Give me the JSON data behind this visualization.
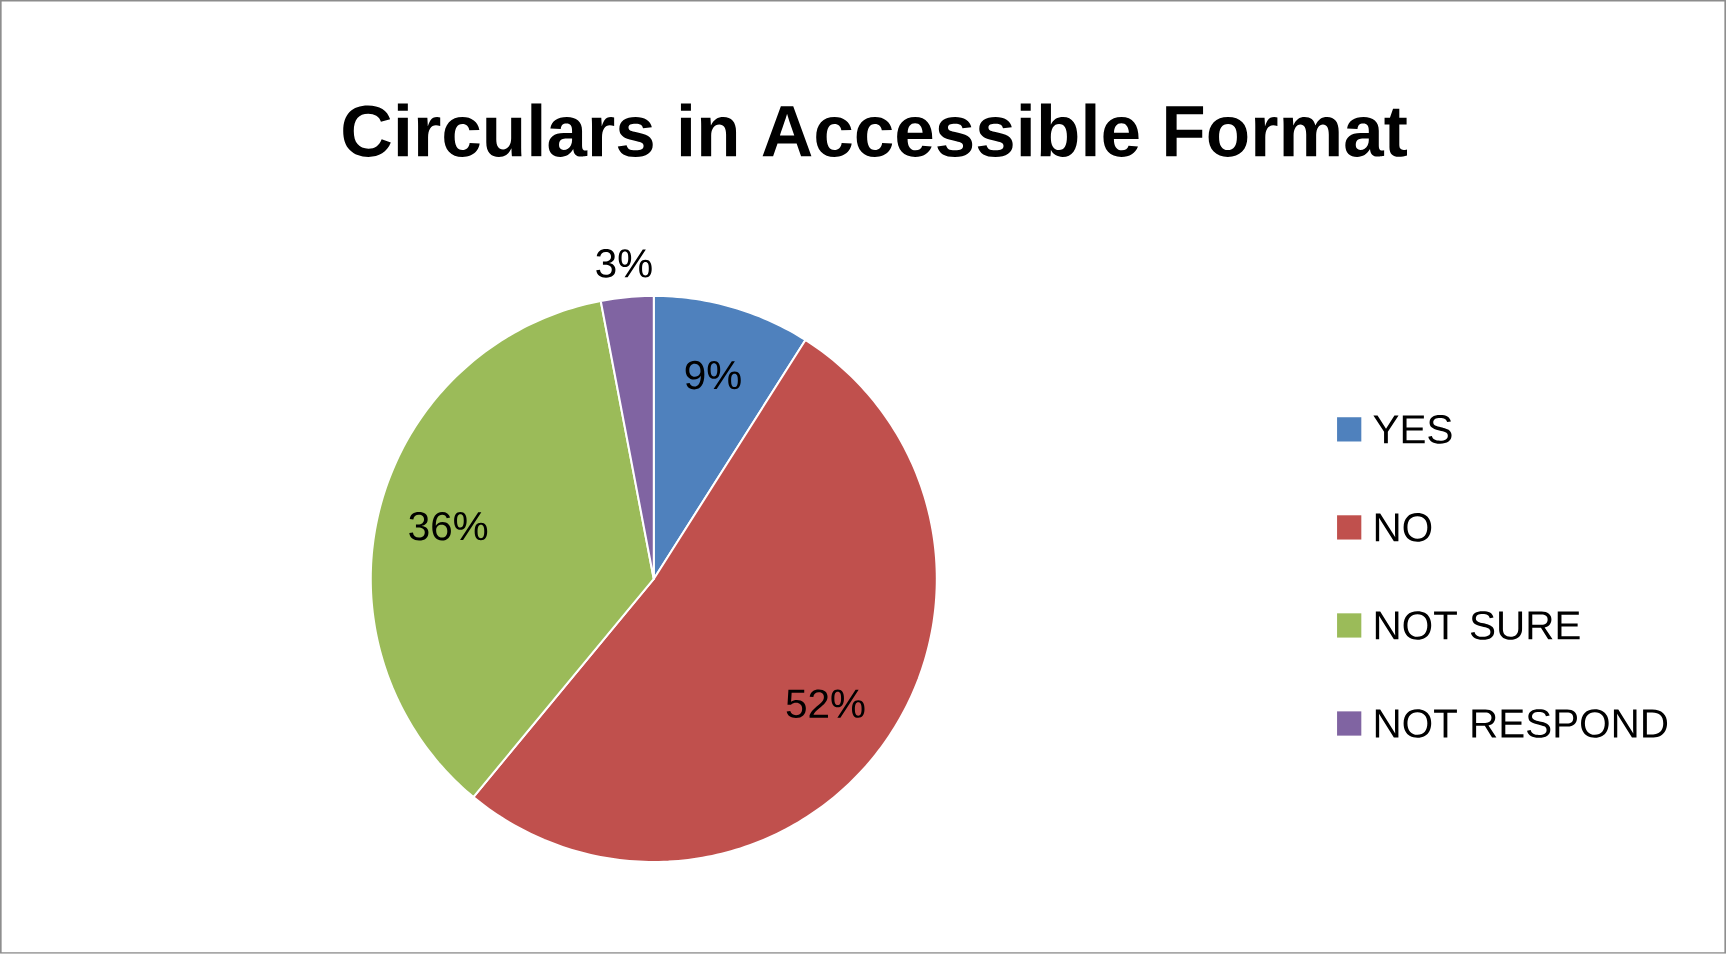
{
  "chart_data": {
    "type": "pie",
    "title": "Circulars in Accessible Format",
    "categories": [
      "YES",
      "NO",
      "NOT SURE",
      "NOT RESPOND"
    ],
    "values": [
      9,
      52,
      36,
      3
    ],
    "value_labels": [
      "9%",
      "52%",
      "36%",
      "3%"
    ],
    "colors": [
      "#4f81bd",
      "#c0504d",
      "#9bbb59",
      "#8064a2"
    ],
    "legend": "right"
  }
}
